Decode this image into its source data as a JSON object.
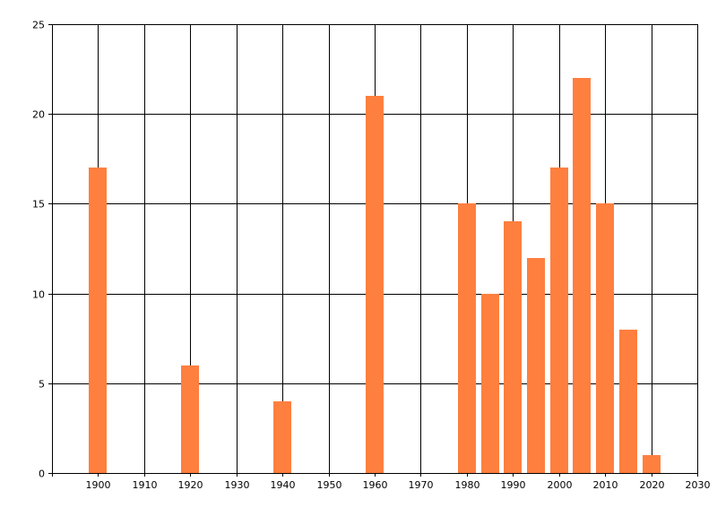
{
  "chart_data": {
    "type": "bar",
    "title": "",
    "xlabel": "",
    "ylabel": "",
    "x": [
      1900,
      1920,
      1940,
      1960,
      1980,
      1985,
      1990,
      1995,
      2000,
      2005,
      2010,
      2015,
      2020
    ],
    "values": [
      17,
      6,
      4,
      21,
      15,
      10,
      14,
      12,
      17,
      22,
      15,
      8,
      1
    ],
    "xlim": [
      1890,
      2030
    ],
    "ylim": [
      0,
      25
    ],
    "x_ticks": [
      1900,
      1910,
      1920,
      1930,
      1940,
      1950,
      1960,
      1970,
      1980,
      1990,
      2000,
      2010,
      2020,
      2030
    ],
    "y_ticks": [
      0,
      5,
      10,
      15,
      20,
      25
    ],
    "grid": true,
    "bar_color": "#ff7f3f",
    "grid_color": "#000000"
  }
}
